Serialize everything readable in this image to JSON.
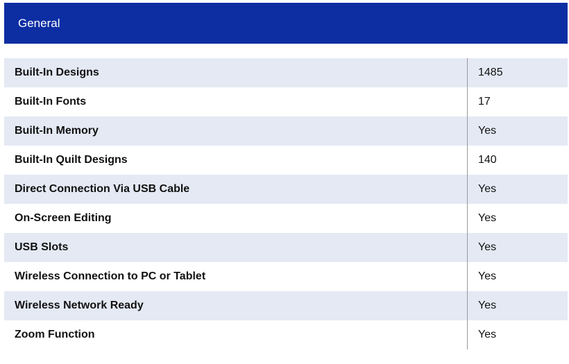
{
  "header": {
    "title": "General"
  },
  "rows": [
    {
      "label": "Built-In Designs",
      "value": "1485"
    },
    {
      "label": "Built-In Fonts",
      "value": "17"
    },
    {
      "label": "Built-In Memory",
      "value": "Yes"
    },
    {
      "label": "Built-In Quilt Designs",
      "value": "140"
    },
    {
      "label": "Direct Connection Via USB Cable",
      "value": "Yes"
    },
    {
      "label": "On-Screen Editing",
      "value": "Yes"
    },
    {
      "label": "USB Slots",
      "value": "Yes"
    },
    {
      "label": "Wireless Connection to PC or Tablet",
      "value": "Yes"
    },
    {
      "label": "Wireless Network Ready",
      "value": "Yes"
    },
    {
      "label": "Zoom Function",
      "value": "Yes"
    }
  ]
}
